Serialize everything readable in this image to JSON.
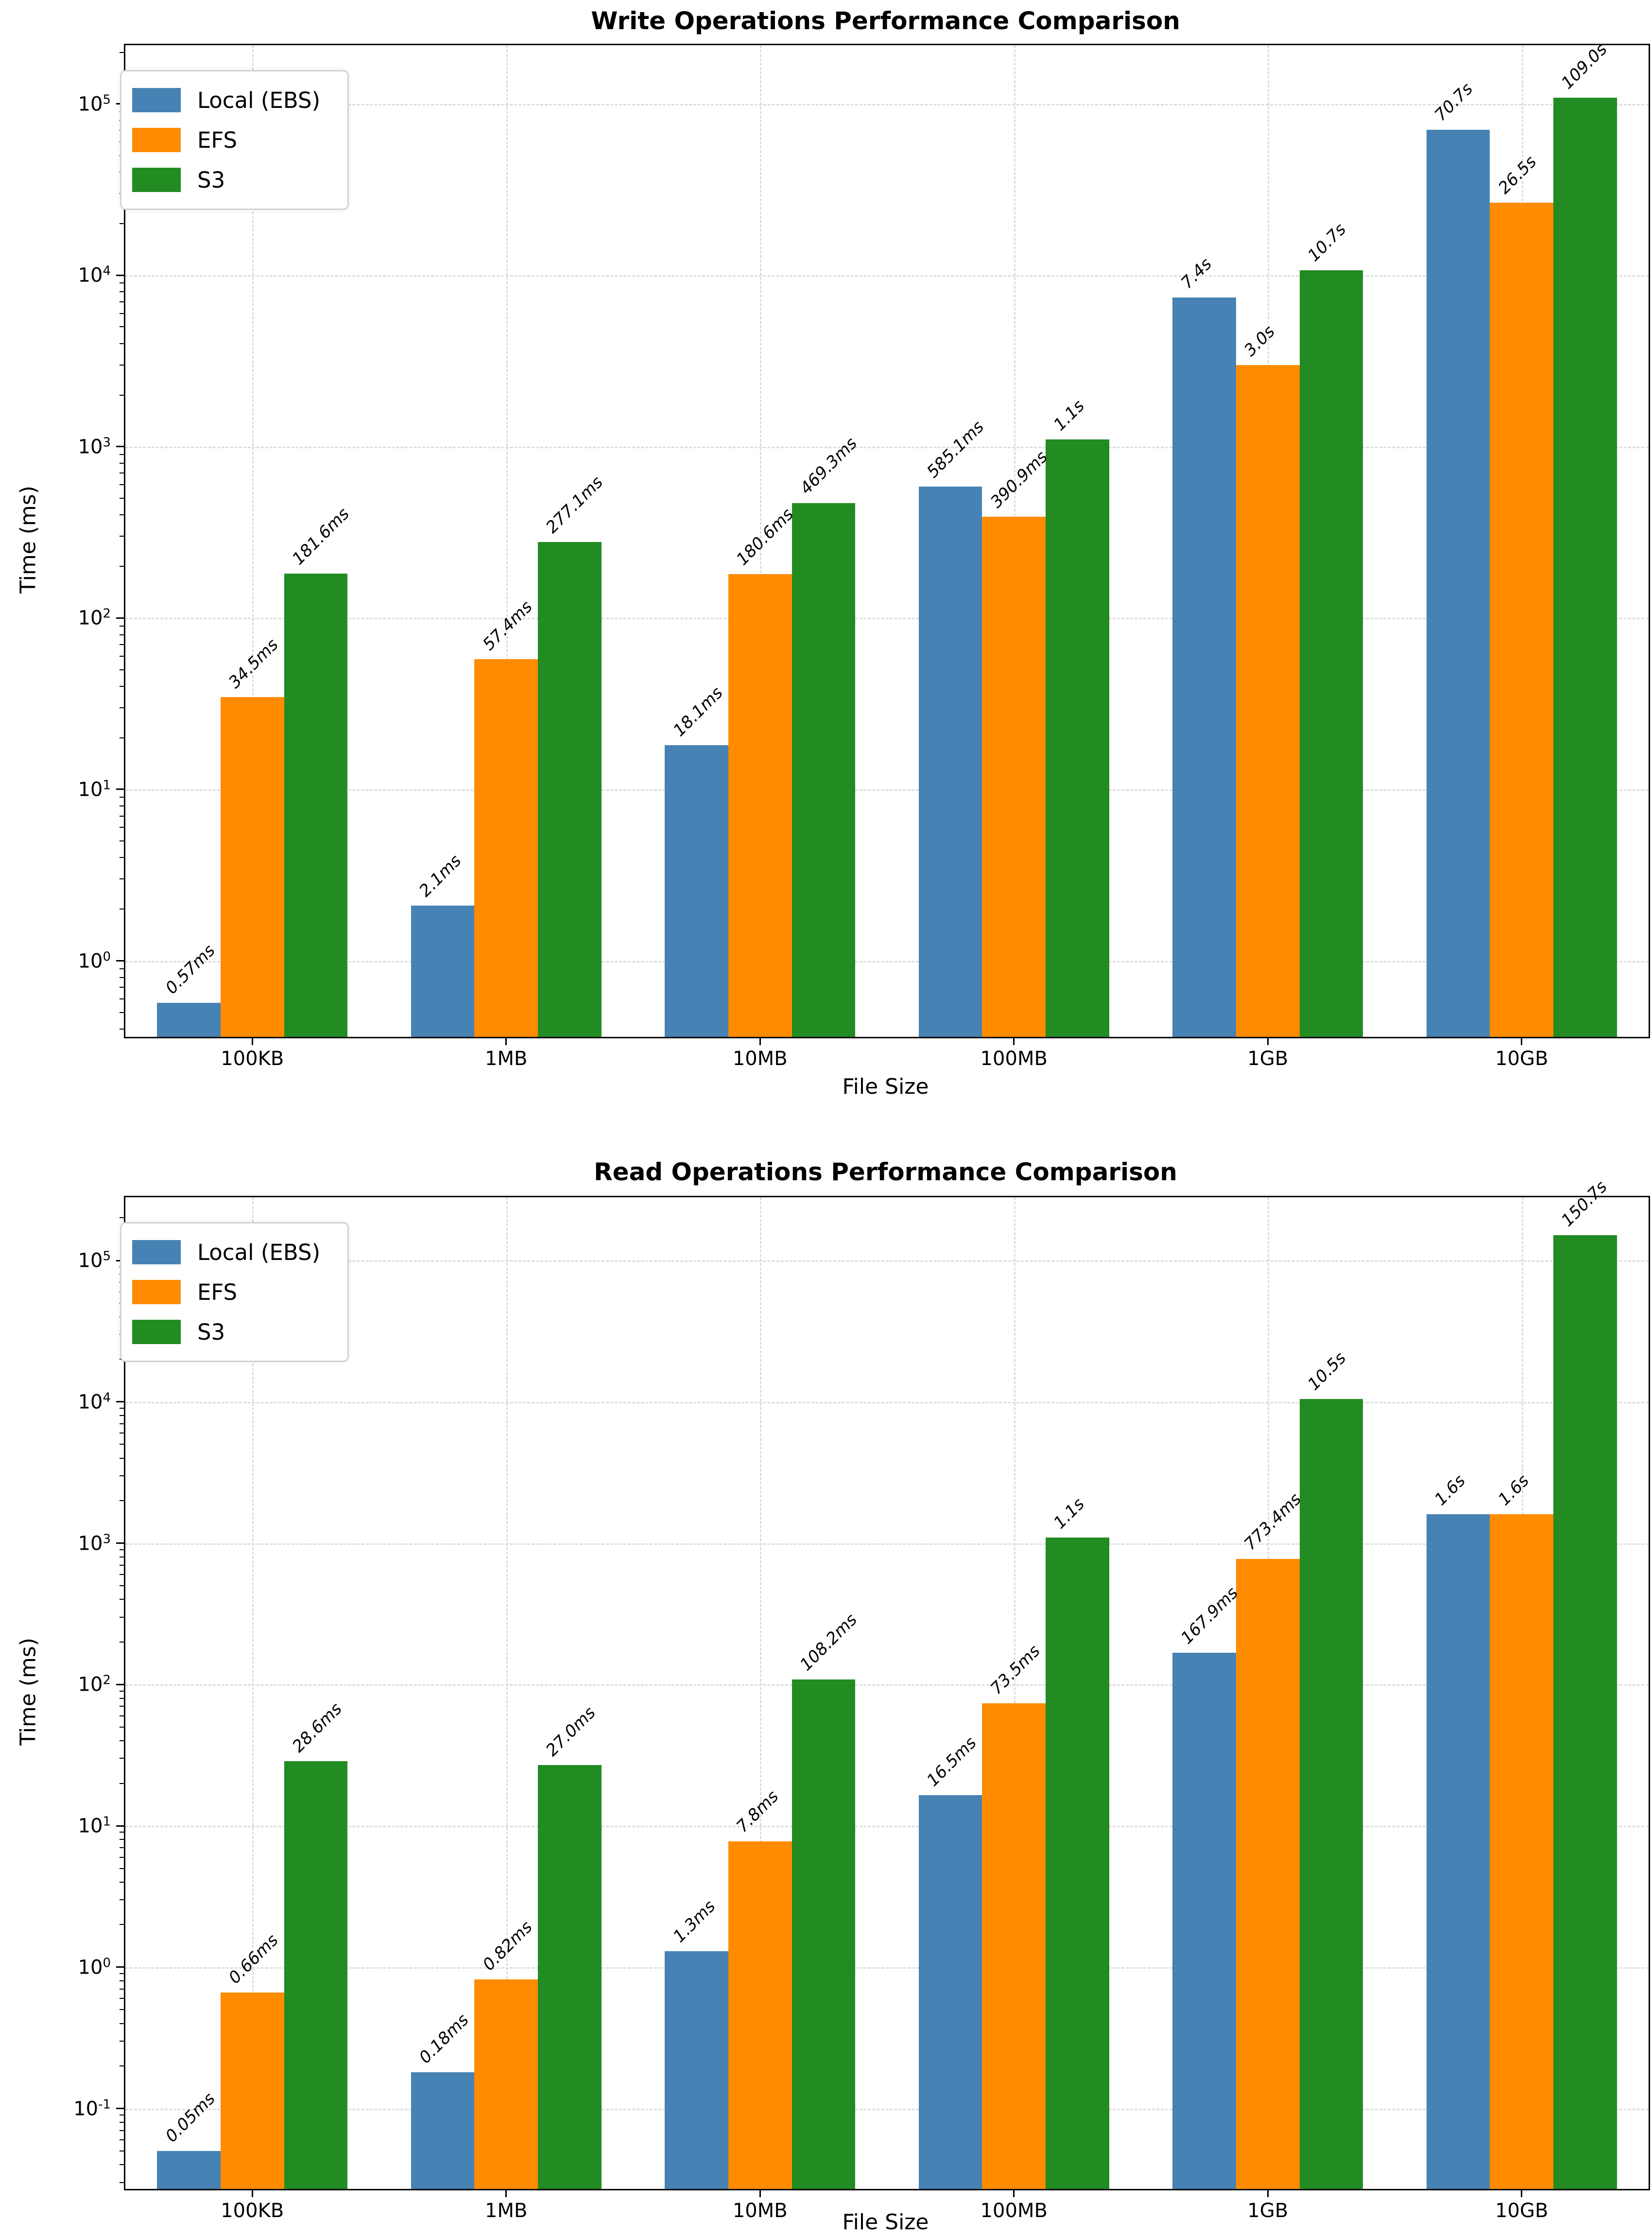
{
  "chart_data": [
    {
      "type": "bar",
      "title": "Write Operations Performance Comparison",
      "xlabel": "File Size",
      "ylabel": "Time (ms)",
      "yscale": "log",
      "grid": "dashed",
      "legend_position": "upper left",
      "categories": [
        "100KB",
        "1MB",
        "10MB",
        "100MB",
        "1GB",
        "10GB"
      ],
      "ylim": [
        0.36,
        220000
      ],
      "ytick_exponents": [
        0,
        1,
        2,
        3,
        4,
        5
      ],
      "series": [
        {
          "name": "Local (EBS)",
          "color": "#4682B4",
          "values_ms": [
            0.57,
            2.1,
            18.1,
            585.1,
            7400,
            70700
          ],
          "labels": [
            "0.57ms",
            "2.1ms",
            "18.1ms",
            "585.1ms",
            "7.4s",
            "70.7s"
          ]
        },
        {
          "name": "EFS",
          "color": "#FF8C00",
          "values_ms": [
            34.5,
            57.4,
            180.6,
            390.9,
            3000,
            26500
          ],
          "labels": [
            "34.5ms",
            "57.4ms",
            "180.6ms",
            "390.9ms",
            "3.0s",
            "26.5s"
          ]
        },
        {
          "name": "S3",
          "color": "#228B22",
          "values_ms": [
            181.6,
            277.1,
            469.3,
            1100,
            10700,
            109000
          ],
          "labels": [
            "181.6ms",
            "277.1ms",
            "469.3ms",
            "1.1s",
            "10.7s",
            "109.0s"
          ]
        }
      ]
    },
    {
      "type": "bar",
      "title": "Read Operations Performance Comparison",
      "xlabel": "File Size",
      "ylabel": "Time (ms)",
      "yscale": "log",
      "grid": "dashed",
      "legend_position": "upper left",
      "categories": [
        "100KB",
        "1MB",
        "10MB",
        "100MB",
        "1GB",
        "10GB"
      ],
      "ylim": [
        0.027,
        280000
      ],
      "ytick_exponents": [
        -1,
        0,
        1,
        2,
        3,
        4,
        5
      ],
      "series": [
        {
          "name": "Local (EBS)",
          "color": "#4682B4",
          "values_ms": [
            0.05,
            0.18,
            1.3,
            16.5,
            167.9,
            1600
          ],
          "labels": [
            "0.05ms",
            "0.18ms",
            "1.3ms",
            "16.5ms",
            "167.9ms",
            "1.6s"
          ]
        },
        {
          "name": "EFS",
          "color": "#FF8C00",
          "values_ms": [
            0.66,
            0.82,
            7.8,
            73.5,
            773.4,
            1600
          ],
          "labels": [
            "0.66ms",
            "0.82ms",
            "7.8ms",
            "73.5ms",
            "773.4ms",
            "1.6s"
          ]
        },
        {
          "name": "S3",
          "color": "#228B22",
          "values_ms": [
            28.6,
            27.0,
            108.2,
            1100,
            10500,
            150700
          ],
          "labels": [
            "28.6ms",
            "27.0ms",
            "108.2ms",
            "1.1s",
            "10.5s",
            "150.7s"
          ]
        }
      ]
    }
  ]
}
